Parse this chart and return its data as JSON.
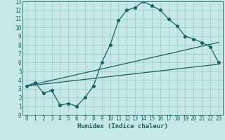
{
  "xlabel": "Humidex (Indice chaleur)",
  "xlim": [
    -0.5,
    23.5
  ],
  "ylim": [
    0,
    13
  ],
  "xticks": [
    0,
    1,
    2,
    3,
    4,
    5,
    6,
    7,
    8,
    9,
    10,
    11,
    12,
    13,
    14,
    15,
    16,
    17,
    18,
    19,
    20,
    21,
    22,
    23
  ],
  "yticks": [
    0,
    1,
    2,
    3,
    4,
    5,
    6,
    7,
    8,
    9,
    10,
    11,
    12,
    13
  ],
  "bg_color": "#c6e8e6",
  "grid_color": "#9ecece",
  "line_color": "#1a6060",
  "line1_x": [
    0,
    1,
    2,
    3,
    4,
    5,
    6,
    7,
    8,
    9,
    10,
    11,
    12,
    13,
    14,
    15,
    16,
    17,
    18,
    19,
    20,
    21,
    22,
    23
  ],
  "line1_y": [
    3.3,
    3.7,
    2.5,
    2.8,
    1.1,
    1.3,
    1.0,
    2.0,
    3.3,
    6.0,
    8.0,
    10.8,
    12.0,
    12.3,
    13.0,
    12.5,
    12.0,
    11.0,
    10.2,
    9.0,
    8.7,
    8.3,
    7.8,
    6.0
  ],
  "line2_x": [
    0,
    23
  ],
  "line2_y": [
    3.3,
    8.3
  ],
  "line3_x": [
    0,
    23
  ],
  "line3_y": [
    3.3,
    5.8
  ],
  "tick_fontsize": 5.5,
  "xlabel_fontsize": 6.5
}
